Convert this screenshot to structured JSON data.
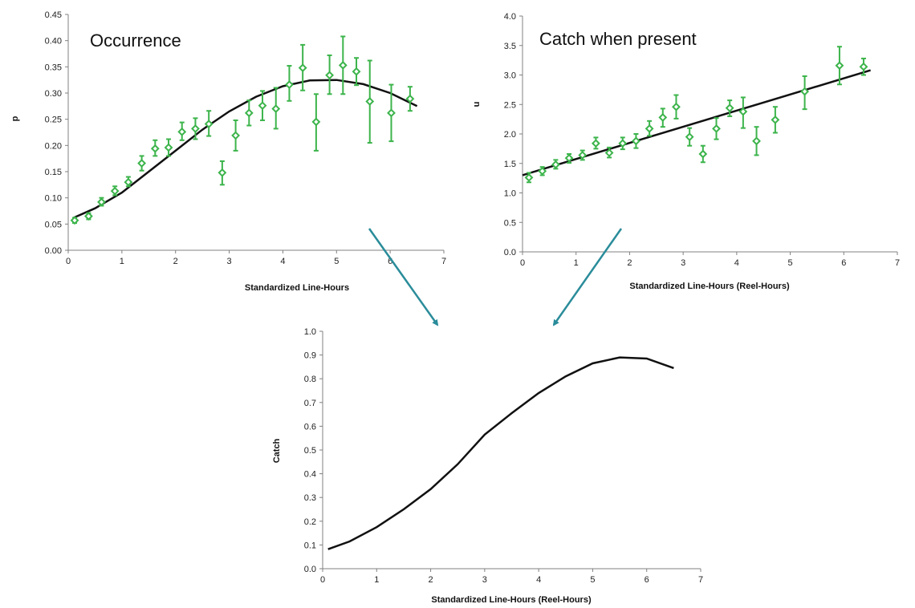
{
  "chart_data": [
    {
      "id": "occurrence",
      "type": "scatter",
      "title": "Occurrence",
      "xlabel": "Standardized Line-Hours",
      "ylabel": "p",
      "xlim": [
        0,
        7
      ],
      "ylim": [
        0,
        0.45
      ],
      "x_ticks": [
        "0",
        "1",
        "2",
        "3",
        "4",
        "5",
        "6",
        "7"
      ],
      "y_ticks": [
        "0.00",
        "0.05",
        "0.10",
        "0.15",
        "0.20",
        "0.25",
        "0.30",
        "0.35",
        "0.40",
        "0.45"
      ],
      "grid": false,
      "marker_color": "#3cb44b",
      "line_color": "#111111",
      "points": [
        {
          "x": 0.12,
          "y": 0.057,
          "lo": 0.052,
          "hi": 0.062
        },
        {
          "x": 0.38,
          "y": 0.065,
          "lo": 0.059,
          "hi": 0.071
        },
        {
          "x": 0.62,
          "y": 0.092,
          "lo": 0.085,
          "hi": 0.1
        },
        {
          "x": 0.87,
          "y": 0.113,
          "lo": 0.105,
          "hi": 0.122
        },
        {
          "x": 1.12,
          "y": 0.13,
          "lo": 0.122,
          "hi": 0.14
        },
        {
          "x": 1.37,
          "y": 0.166,
          "lo": 0.152,
          "hi": 0.18
        },
        {
          "x": 1.62,
          "y": 0.194,
          "lo": 0.18,
          "hi": 0.21
        },
        {
          "x": 1.87,
          "y": 0.196,
          "lo": 0.18,
          "hi": 0.212
        },
        {
          "x": 2.12,
          "y": 0.226,
          "lo": 0.21,
          "hi": 0.244
        },
        {
          "x": 2.37,
          "y": 0.232,
          "lo": 0.212,
          "hi": 0.252
        },
        {
          "x": 2.62,
          "y": 0.241,
          "lo": 0.218,
          "hi": 0.266
        },
        {
          "x": 2.87,
          "y": 0.148,
          "lo": 0.125,
          "hi": 0.17
        },
        {
          "x": 3.12,
          "y": 0.219,
          "lo": 0.19,
          "hi": 0.248
        },
        {
          "x": 3.37,
          "y": 0.262,
          "lo": 0.238,
          "hi": 0.286
        },
        {
          "x": 3.62,
          "y": 0.276,
          "lo": 0.248,
          "hi": 0.304
        },
        {
          "x": 3.87,
          "y": 0.27,
          "lo": 0.232,
          "hi": 0.31
        },
        {
          "x": 4.12,
          "y": 0.316,
          "lo": 0.285,
          "hi": 0.352
        },
        {
          "x": 4.37,
          "y": 0.348,
          "lo": 0.305,
          "hi": 0.392
        },
        {
          "x": 4.62,
          "y": 0.245,
          "lo": 0.19,
          "hi": 0.298
        },
        {
          "x": 4.87,
          "y": 0.334,
          "lo": 0.298,
          "hi": 0.372
        },
        {
          "x": 5.12,
          "y": 0.353,
          "lo": 0.298,
          "hi": 0.408
        },
        {
          "x": 5.37,
          "y": 0.341,
          "lo": 0.315,
          "hi": 0.367
        },
        {
          "x": 5.62,
          "y": 0.284,
          "lo": 0.205,
          "hi": 0.362
        },
        {
          "x": 6.02,
          "y": 0.262,
          "lo": 0.208,
          "hi": 0.316
        },
        {
          "x": 6.37,
          "y": 0.289,
          "lo": 0.266,
          "hi": 0.312
        }
      ],
      "fit_line": {
        "x": [
          0.1,
          0.5,
          1.0,
          1.5,
          2.0,
          2.5,
          3.0,
          3.5,
          4.0,
          4.5,
          5.0,
          5.5,
          6.0,
          6.5
        ],
        "y": [
          0.062,
          0.08,
          0.11,
          0.15,
          0.19,
          0.23,
          0.265,
          0.293,
          0.313,
          0.324,
          0.325,
          0.317,
          0.3,
          0.275
        ]
      }
    },
    {
      "id": "catch-when-present",
      "type": "scatter",
      "title": "Catch when present",
      "xlabel": "Standardized Line-Hours (Reel-Hours)",
      "ylabel": "u",
      "xlim": [
        0,
        7
      ],
      "ylim": [
        0,
        4.0
      ],
      "x_ticks": [
        "0",
        "1",
        "2",
        "3",
        "4",
        "5",
        "6",
        "7"
      ],
      "y_ticks": [
        "0.0",
        "0.5",
        "1.0",
        "1.5",
        "2.0",
        "2.5",
        "3.0",
        "3.5",
        "4.0"
      ],
      "grid": false,
      "marker_color": "#3cb44b",
      "line_color": "#111111",
      "points": [
        {
          "x": 0.12,
          "y": 1.26,
          "lo": 1.18,
          "hi": 1.34
        },
        {
          "x": 0.37,
          "y": 1.37,
          "lo": 1.3,
          "hi": 1.44
        },
        {
          "x": 0.62,
          "y": 1.48,
          "lo": 1.41,
          "hi": 1.56
        },
        {
          "x": 0.87,
          "y": 1.59,
          "lo": 1.51,
          "hi": 1.66
        },
        {
          "x": 1.12,
          "y": 1.64,
          "lo": 1.56,
          "hi": 1.72
        },
        {
          "x": 1.37,
          "y": 1.84,
          "lo": 1.75,
          "hi": 1.94
        },
        {
          "x": 1.62,
          "y": 1.68,
          "lo": 1.6,
          "hi": 1.77
        },
        {
          "x": 1.87,
          "y": 1.84,
          "lo": 1.74,
          "hi": 1.94
        },
        {
          "x": 2.12,
          "y": 1.88,
          "lo": 1.76,
          "hi": 2.0
        },
        {
          "x": 2.37,
          "y": 2.09,
          "lo": 1.97,
          "hi": 2.22
        },
        {
          "x": 2.62,
          "y": 2.28,
          "lo": 2.12,
          "hi": 2.43
        },
        {
          "x": 2.87,
          "y": 2.46,
          "lo": 2.26,
          "hi": 2.66
        },
        {
          "x": 3.12,
          "y": 1.95,
          "lo": 1.8,
          "hi": 2.1
        },
        {
          "x": 3.37,
          "y": 1.66,
          "lo": 1.52,
          "hi": 1.8
        },
        {
          "x": 3.62,
          "y": 2.09,
          "lo": 1.91,
          "hi": 2.27
        },
        {
          "x": 3.87,
          "y": 2.44,
          "lo": 2.3,
          "hi": 2.57
        },
        {
          "x": 4.12,
          "y": 2.38,
          "lo": 2.1,
          "hi": 2.62
        },
        {
          "x": 4.37,
          "y": 1.88,
          "lo": 1.64,
          "hi": 2.12
        },
        {
          "x": 4.72,
          "y": 2.24,
          "lo": 2.02,
          "hi": 2.46
        },
        {
          "x": 5.27,
          "y": 2.72,
          "lo": 2.42,
          "hi": 2.98
        },
        {
          "x": 5.92,
          "y": 3.16,
          "lo": 2.84,
          "hi": 3.48
        },
        {
          "x": 6.37,
          "y": 3.14,
          "lo": 3.0,
          "hi": 3.28
        }
      ],
      "fit_line": {
        "x": [
          0.0,
          6.5
        ],
        "y": [
          1.3,
          3.08
        ]
      }
    },
    {
      "id": "catch",
      "type": "line",
      "title": "",
      "xlabel": "Standardized Line-Hours (Reel-Hours)",
      "ylabel": "Catch",
      "xlim": [
        0,
        7
      ],
      "ylim": [
        0,
        1.0
      ],
      "x_ticks": [
        "0",
        "1",
        "2",
        "3",
        "4",
        "5",
        "6",
        "7"
      ],
      "y_ticks": [
        "0.0",
        "0.1",
        "0.2",
        "0.3",
        "0.4",
        "0.5",
        "0.6",
        "0.7",
        "0.8",
        "0.9",
        "1.0"
      ],
      "grid": false,
      "line_color": "#111111",
      "series": [
        {
          "x": [
            0.1,
            0.5,
            1.0,
            1.5,
            2.0,
            2.5,
            3.0,
            3.5,
            4.0,
            4.5,
            5.0,
            5.5,
            6.0,
            6.5
          ],
          "y": [
            0.082,
            0.115,
            0.175,
            0.25,
            0.335,
            0.44,
            0.565,
            0.655,
            0.74,
            0.81,
            0.865,
            0.89,
            0.885,
            0.845
          ]
        }
      ]
    }
  ],
  "arrows": {
    "color": "#2a8c9a"
  }
}
